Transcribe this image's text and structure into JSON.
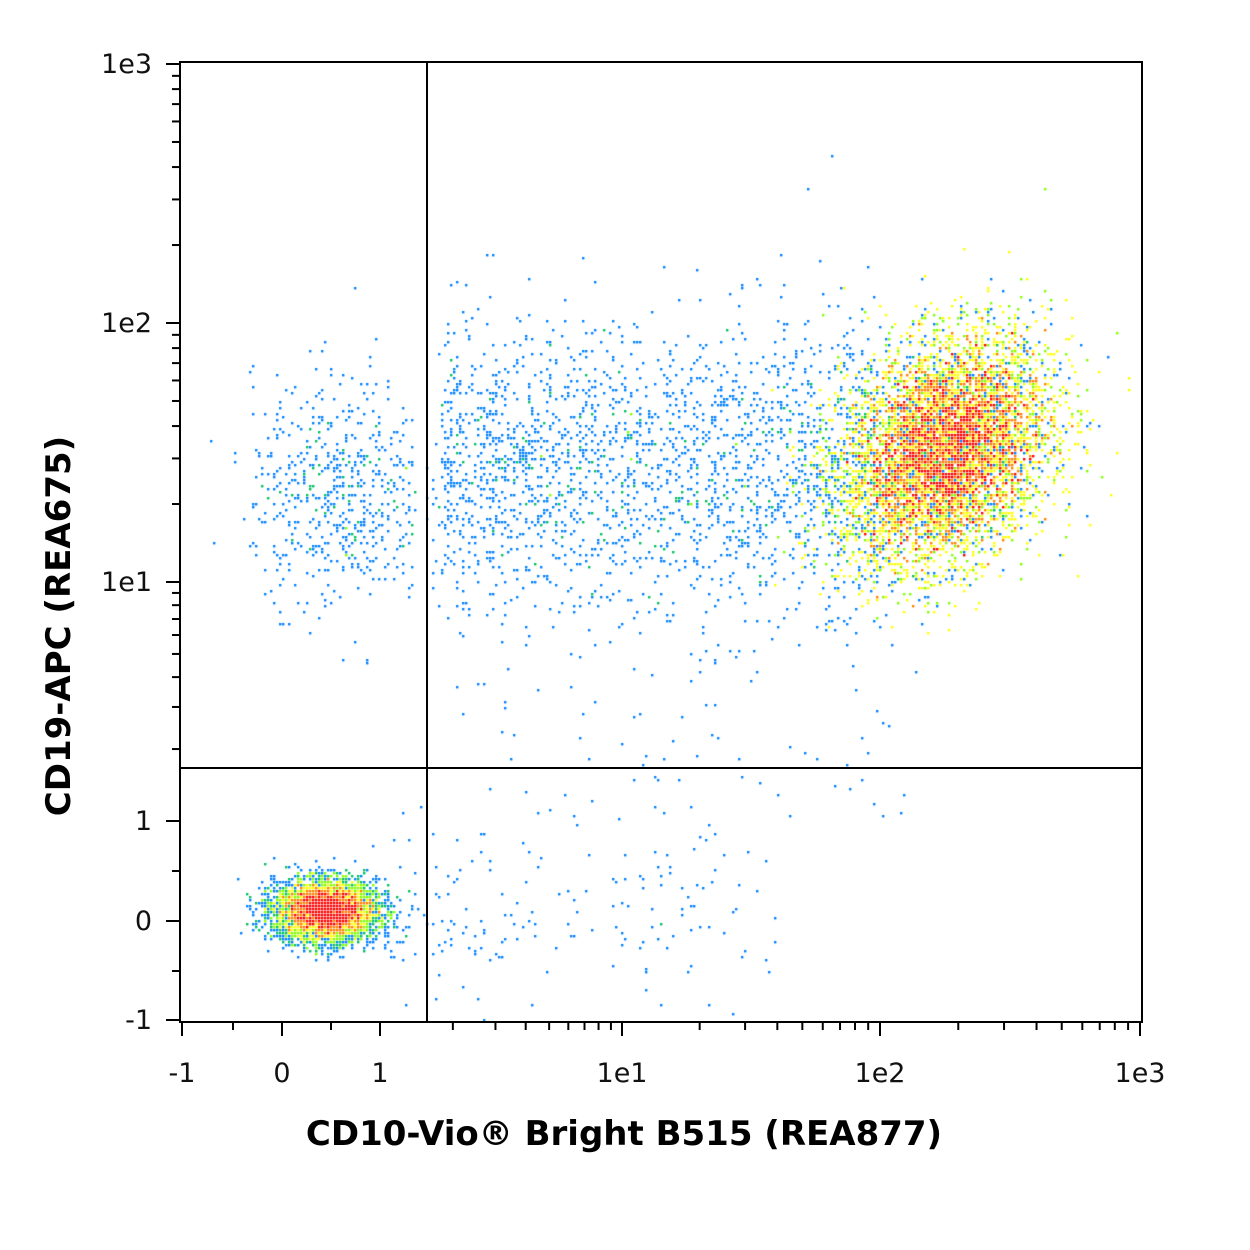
{
  "chart_data": {
    "type": "scatter",
    "subtype": "flow-cytometry-density-dot-plot",
    "xlabel": "CD10-Vio® Bright B515 (REA877)",
    "ylabel": "CD19-APC (REA675)",
    "x_scale": "biexponential (linear from -1 to ~1.6, logarithmic above)",
    "y_scale": "biexponential (linear from -1 to ~1.6, logarithmic above)",
    "xlim": [
      -1,
      1000
    ],
    "ylim": [
      -1,
      1000
    ],
    "x_ticks": [
      {
        "value": -1,
        "label": "-1"
      },
      {
        "value": 0,
        "label": "0"
      },
      {
        "value": 1,
        "label": "1"
      },
      {
        "value": 10,
        "label": "1e1"
      },
      {
        "value": 100,
        "label": "1e2"
      },
      {
        "value": 1000,
        "label": "1e3"
      }
    ],
    "y_ticks": [
      {
        "value": -1,
        "label": "-1"
      },
      {
        "value": 0,
        "label": "0"
      },
      {
        "value": 1,
        "label": "1"
      },
      {
        "value": 10,
        "label": "1e1"
      },
      {
        "value": 100,
        "label": "1e2"
      },
      {
        "value": 1000,
        "label": "1e3"
      }
    ],
    "gates": {
      "x_threshold": 1.6,
      "y_threshold": 1.6,
      "type": "quadrant"
    },
    "grid": false,
    "legend": false,
    "color_scale": [
      "#0000ff",
      "#0080ff",
      "#00c060",
      "#80ff00",
      "#ffff00",
      "#ff8000",
      "#ff0000"
    ],
    "populations": [
      {
        "center_x": 180,
        "center_y": 32,
        "spread_x_decades": 0.22,
        "spread_y_decades": 0.22,
        "relative_size": 0.78
      },
      {
        "center_x": 0.45,
        "center_y": 0.1,
        "spread_x_linear": 0.25,
        "spread_y_linear": 0.15,
        "relative_size": 0.14
      },
      {
        "center_x": 5,
        "center_y": 30,
        "spread_x_decades": 0.45,
        "spread_y_decades": 0.3,
        "relative_size": 0.06
      },
      {
        "center_x": 0.5,
        "center_y": 25,
        "spread_x_linear": 0.4,
        "spread_y_decades": 0.25,
        "relative_size": 0.02
      }
    ]
  }
}
